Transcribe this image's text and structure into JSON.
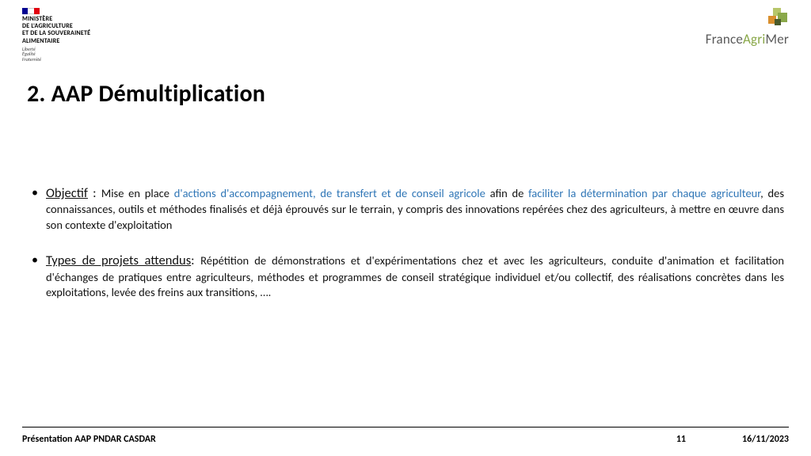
{
  "header": {
    "ministere_lines": [
      "MINISTÈRE",
      "DE L'AGRICULTURE",
      "ET DE LA SOUVERAINETÉ",
      "ALIMENTAIRE"
    ],
    "motto_lines": [
      "Liberté",
      "Égalité",
      "Fraternité"
    ],
    "france_agrimer": "FranceAgriMer",
    "fam_colors": {
      "green1": "#8aa84a",
      "green2": "#b7c66a",
      "orange": "#d98f2e",
      "dark": "#4a5a2a"
    }
  },
  "title": "2. AAP Démultiplication",
  "bullets": [
    {
      "lead_label": "Objectif",
      "lead_sep": " : ",
      "parts": [
        {
          "text": "Mise en place ",
          "hl": false
        },
        {
          "text": "d'actions d'accompagnement, de transfert et de conseil agricole",
          "hl": true
        },
        {
          "text": " afin de ",
          "hl": false
        },
        {
          "text": "faciliter la détermination par chaque agriculteur",
          "hl": true
        },
        {
          "text": ", des connaissances, outils et méthodes finalisés et déjà éprouvés sur le terrain, y compris des innovations repérées chez des agriculteurs, à mettre en œuvre dans son contexte d'exploitation",
          "hl": false
        }
      ]
    },
    {
      "lead_label": "Types de projets attendus",
      "lead_sep": ": ",
      "parts": [
        {
          "text": "Répétition de démonstrations et d'expérimentations chez et avec les agriculteurs, conduite d'animation et facilitation d'échanges de pratiques entre agriculteurs, méthodes et programmes de conseil stratégique individuel et/ou collectif, des réalisations concrètes dans les exploitations, levée des freins aux transitions, ….",
          "hl": false
        }
      ]
    }
  ],
  "footer": {
    "left": "Présentation AAP PNDAR CASDAR",
    "page": "11",
    "date": "16/11/2023"
  }
}
